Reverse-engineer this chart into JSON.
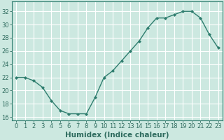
{
  "x": [
    0,
    1,
    2,
    3,
    4,
    5,
    6,
    7,
    8,
    9,
    10,
    11,
    12,
    13,
    14,
    15,
    16,
    17,
    18,
    19,
    20,
    21,
    22,
    23
  ],
  "y": [
    22,
    22,
    21.5,
    20.5,
    18.5,
    17,
    16.5,
    16.5,
    16.5,
    19,
    22,
    23,
    24.5,
    26,
    27.5,
    29.5,
    31,
    31,
    31.5,
    32,
    32,
    31,
    28.5,
    26.5
  ],
  "line_color": "#2e7d6e",
  "marker": "D",
  "marker_size": 2,
  "bg_color": "#cce8e0",
  "grid_color": "#ffffff",
  "xlabel": "Humidex (Indice chaleur)",
  "ylim": [
    15.5,
    33.5
  ],
  "xlim": [
    -0.5,
    23.5
  ],
  "yticks": [
    16,
    18,
    20,
    22,
    24,
    26,
    28,
    30,
    32
  ],
  "xticks": [
    0,
    1,
    2,
    3,
    4,
    5,
    6,
    7,
    8,
    9,
    10,
    11,
    12,
    13,
    14,
    15,
    16,
    17,
    18,
    19,
    20,
    21,
    22,
    23
  ],
  "tick_color": "#2e6b5e",
  "label_color": "#2e6b5e",
  "spine_color": "#2e7d6e",
  "font_size": 6.0,
  "xlabel_fontsize": 7.5,
  "linewidth": 1.0
}
